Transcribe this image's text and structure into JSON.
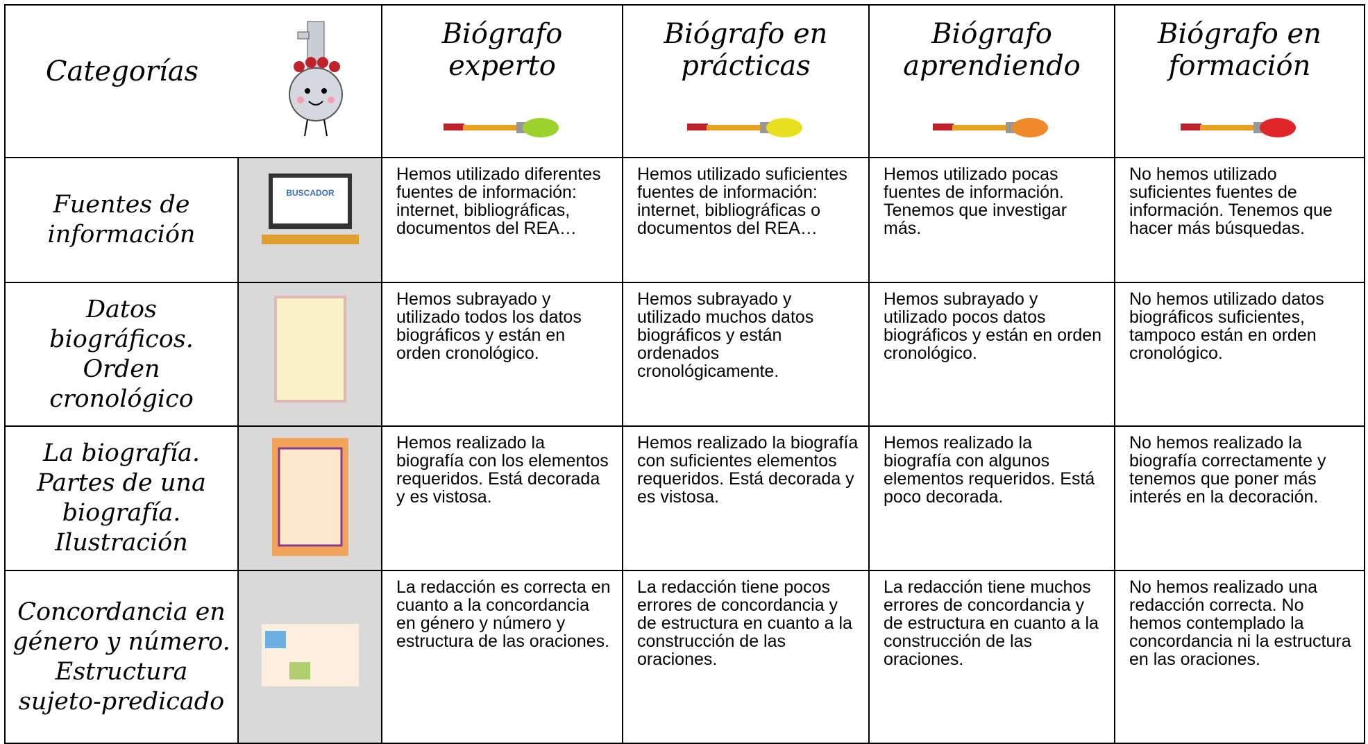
{
  "header": {
    "categories_label": "Categorías",
    "levels": [
      "Biógrafo experto",
      "Biógrafo en prácticas",
      "Biógrafo aprendiendo",
      "Biógrafo en formación"
    ]
  },
  "rows": [
    {
      "category": "Fuentes de información",
      "descriptors": [
        "Hemos utilizado diferentes fuentes de información: internet, bibliográficas, documentos del REA…",
        "Hemos utilizado suficientes fuentes de información: internet, bibliográficas o documentos del REA…",
        "Hemos utilizado pocas fuentes de información. Tenemos que investigar más.",
        "No hemos utilizado suficientes fuentes de información. Tenemos que hacer más búsquedas."
      ]
    },
    {
      "category": "Datos biográficos. Orden cronológico",
      "descriptors": [
        "Hemos subrayado y utilizado todos los datos biográficos y están en orden cronológico.",
        "Hemos subrayado y utilizado muchos datos biográficos y están ordenados cronológicamente.",
        "Hemos subrayado y utilizado pocos datos biográficos y están en orden cronológico.",
        "No hemos utilizado datos biográficos suficientes, tampoco están en orden cronológico."
      ]
    },
    {
      "category": "La biografía. Partes de una biografía. Ilustración",
      "descriptors": [
        "Hemos realizado la biografía con los elementos requeridos. Está decorada y es vistosa.",
        "Hemos realizado la biografía con suficientes elementos requeridos. Está decorada y es vistosa.",
        "Hemos realizado la biografía con algunos elementos requeridos. Está poco decorada.",
        "No hemos realizado la biografía correctamente y tenemos que poner más interés en la decoración."
      ]
    },
    {
      "category": "Concordancia en género y número. Estructura sujeto-predicado",
      "descriptors": [
        "La redacción es correcta en cuanto a la concordancia en género y número y estructura de las oraciones.",
        "La redacción tiene pocos errores de concordancia y de estructura en cuanto a la construcción de las oraciones.",
        "La redacción tiene muchos errores de concordancia y de estructura en cuanto a la construcción de las oraciones.",
        "No hemos realizado una redacción correcta. No hemos contemplado la concordancia ni la estructura en las oraciones."
      ]
    }
  ]
}
